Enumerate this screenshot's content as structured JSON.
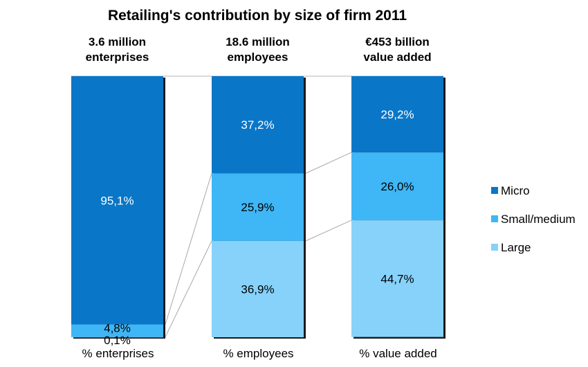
{
  "chart_data": {
    "type": "bar",
    "stacked": true,
    "percent_stacked": true,
    "title": "Retailing's contribution by size of firm 2011",
    "column_headers": [
      [
        "3.6 million",
        "enterprises"
      ],
      [
        "18.6 million",
        "employees"
      ],
      [
        "€453 billion",
        "value added"
      ]
    ],
    "categories": [
      "% enterprises",
      "% employees",
      "% value added"
    ],
    "series": [
      {
        "name": "Micro",
        "values": [
          95.1,
          37.2,
          29.2
        ],
        "labels": [
          "95,1%",
          "37,2%",
          "29,2%"
        ],
        "color": "#0a76c7",
        "label_color": "#ffffff"
      },
      {
        "name": "Small/medium",
        "values": [
          4.8,
          25.9,
          26.0
        ],
        "labels": [
          "4,8%",
          "25,9%",
          "26,0%"
        ],
        "color": "#3fb6f5",
        "label_color": "#000000"
      },
      {
        "name": "Large",
        "values": [
          0.1,
          36.9,
          44.7
        ],
        "labels": [
          "0,1%",
          "36,9%",
          "44,7%"
        ],
        "color": "#86d2fb",
        "label_color": "#000000"
      }
    ],
    "ylim": [
      0,
      100
    ],
    "legend_position": "right",
    "grid": false
  }
}
